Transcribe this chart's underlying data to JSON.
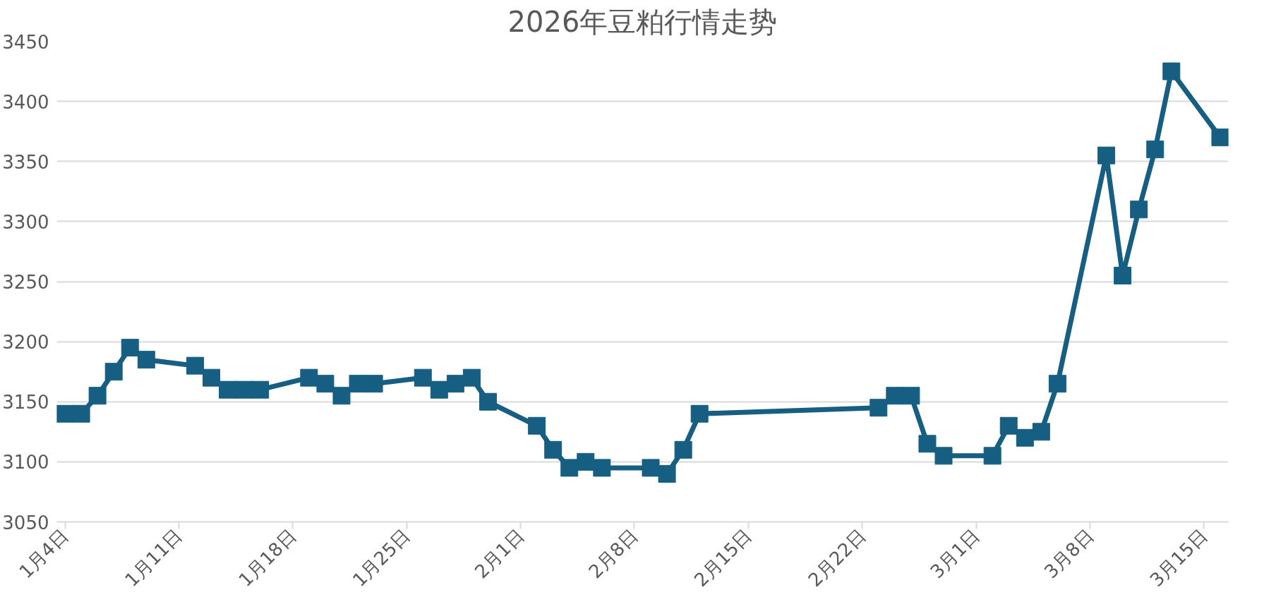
{
  "chart_data": {
    "type": "line",
    "title": "2026年豆粕行情走势",
    "marker": "square",
    "line_style": "solid",
    "grid": "y",
    "x": [
      "2026-01-04",
      "2026-01-05",
      "2026-01-06",
      "2026-01-07",
      "2026-01-08",
      "2026-01-09",
      "2026-01-12",
      "2026-01-13",
      "2026-01-14",
      "2026-01-15",
      "2026-01-16",
      "2026-01-19",
      "2026-01-20",
      "2026-01-21",
      "2026-01-22",
      "2026-01-23",
      "2026-01-26",
      "2026-01-27",
      "2026-01-28",
      "2026-01-29",
      "2026-01-30",
      "2026-02-02",
      "2026-02-03",
      "2026-02-04",
      "2026-02-05",
      "2026-02-06",
      "2026-02-09",
      "2026-02-10",
      "2026-02-11",
      "2026-02-12",
      "2026-02-23",
      "2026-02-24",
      "2026-02-25",
      "2026-02-26",
      "2026-02-27",
      "2026-03-02",
      "2026-03-03",
      "2026-03-04",
      "2026-03-05",
      "2026-03-06",
      "2026-03-09",
      "2026-03-10",
      "2026-03-11",
      "2026-03-12",
      "2026-03-13",
      "2026-03-16"
    ],
    "series": [
      {
        "color": "#175f82",
        "values": [
          3140,
          3140,
          3155,
          3175,
          3195,
          3185,
          3180,
          3170,
          3160,
          3160,
          3160,
          3170,
          3165,
          3155,
          3165,
          3165,
          3170,
          3160,
          3165,
          3170,
          3150,
          3130,
          3110,
          3095,
          3100,
          3095,
          3095,
          3090,
          3110,
          3140,
          3145,
          3155,
          3155,
          3115,
          3105,
          3105,
          3130,
          3120,
          3125,
          3165,
          3355,
          3255,
          3310,
          3360,
          3425,
          3370
        ]
      }
    ],
    "xlim": [
      "2026-01-03T12:00",
      "2026-03-16T12:00"
    ],
    "xticks": [
      {
        "value": "2026-01-04",
        "label": "1月4日"
      },
      {
        "value": "2026-01-11",
        "label": "1月11日"
      },
      {
        "value": "2026-01-18",
        "label": "1月18日"
      },
      {
        "value": "2026-01-25",
        "label": "1月25日"
      },
      {
        "value": "2026-02-01",
        "label": "2月1日"
      },
      {
        "value": "2026-02-08",
        "label": "2月8日"
      },
      {
        "value": "2026-02-15",
        "label": "2月15日"
      },
      {
        "value": "2026-02-22",
        "label": "2月22日"
      },
      {
        "value": "2026-03-01",
        "label": "3月1日"
      },
      {
        "value": "2026-03-08",
        "label": "3月8日"
      },
      {
        "value": "2026-03-15",
        "label": "3月15日"
      }
    ],
    "ylim": [
      3050,
      3450
    ],
    "yticks": [
      3050,
      3100,
      3150,
      3200,
      3250,
      3300,
      3350,
      3400,
      3450
    ]
  }
}
